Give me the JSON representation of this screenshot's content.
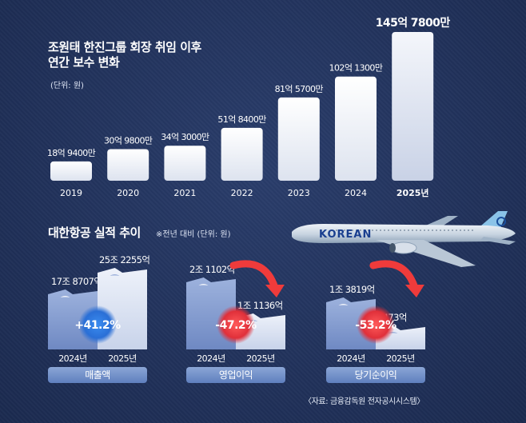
{
  "colors": {
    "background": "#22335e",
    "bar": "#f1f3f7",
    "bar_highlight": "#e6e9f2",
    "mini_prev": "#8ba3d4",
    "mini_curr": "#dfe5f3",
    "increase": "#2f7de0",
    "decrease": "#e23b3b",
    "category_pill": "#6f8cc9"
  },
  "section1": {
    "title_line1": "조원태 한진그룹 회장 취임 이후",
    "title_line2": "연간 보수 변화",
    "unit": "(단위: 원)"
  },
  "section2": {
    "title": "대한항공 실적 추이",
    "note": "※전년 대비   (단위: 원)"
  },
  "source": "〈자료: 금융감독원 전자공시시스템〉",
  "chart_data": [
    {
      "type": "bar",
      "title": "조원태 한진그룹 회장 취임 이후 연간 보수 변화",
      "unit": "원",
      "categories": [
        "2019",
        "2020",
        "2021",
        "2022",
        "2023",
        "2024",
        "2025년"
      ],
      "values": [
        1894000000,
        3098000000,
        3430000000,
        5184000000,
        8157000000,
        10213000000,
        14578000000
      ],
      "labels": [
        "18억 9400만",
        "30억 9800만",
        "34억 3000만",
        "51억 8400만",
        "81억 5700만",
        "102억 1300만",
        "145억 7800만"
      ],
      "highlight": "2025년"
    },
    {
      "type": "bar",
      "title": "대한항공 실적 추이",
      "group": "매출액",
      "unit": "원",
      "categories": [
        "2024년",
        "2025년"
      ],
      "values": [
        17870700000000,
        25225500000000
      ],
      "labels": [
        "17조 8707억",
        "25조 2255억"
      ],
      "change": "+41.2%"
    },
    {
      "type": "bar",
      "title": "대한항공 실적 추이",
      "group": "영업이익",
      "unit": "원",
      "categories": [
        "2024년",
        "2025년"
      ],
      "values": [
        2110200000000,
        1113600000000
      ],
      "labels": [
        "2조 1102억",
        "1조 1136억"
      ],
      "change": "-47.2%"
    },
    {
      "type": "bar",
      "title": "대한항공 실적 추이",
      "group": "당기순이익",
      "unit": "원",
      "categories": [
        "2024년",
        "2025년"
      ],
      "values": [
        1381900000000,
        647300000000
      ],
      "labels": [
        "1조 3819억",
        "6473억"
      ],
      "change": "-53.2%"
    }
  ]
}
